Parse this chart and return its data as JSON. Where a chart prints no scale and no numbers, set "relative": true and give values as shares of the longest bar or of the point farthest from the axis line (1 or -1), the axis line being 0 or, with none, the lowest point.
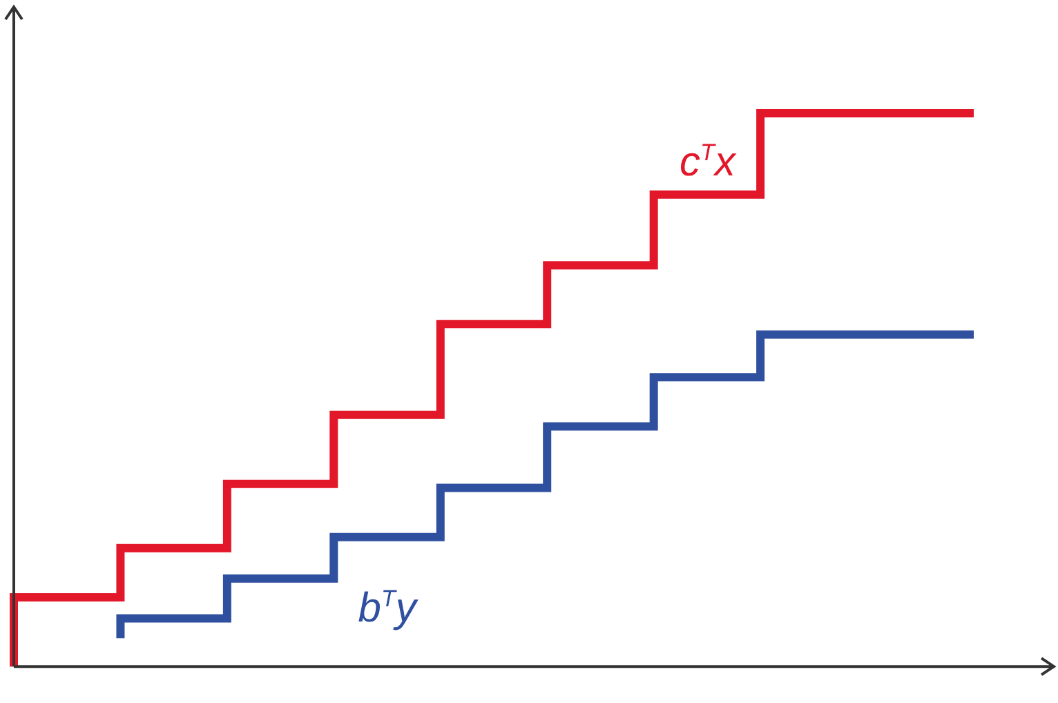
{
  "chart_data": {
    "type": "step",
    "relative": true,
    "categories": [
      null,
      null,
      null,
      null,
      null,
      null,
      null,
      null,
      null,
      null
    ],
    "series": [
      {
        "name": "c$^{T}$x",
        "color": "#e3172a",
        "values": [
          0,
          0.125,
          0.214,
          0.33,
          0.455,
          0.619,
          0.725,
          0.853,
          1,
          1
        ]
      },
      {
        "name": "b$^{T}$y",
        "color": "#2f4f9f",
        "values": [
          null,
          0.051,
          0.087,
          0.159,
          0.234,
          0.323,
          0.434,
          0.523,
          0.6,
          0.6
        ]
      }
    ],
    "grid": false,
    "legend": false,
    "marker": "none",
    "line_style": "solid"
  }
}
